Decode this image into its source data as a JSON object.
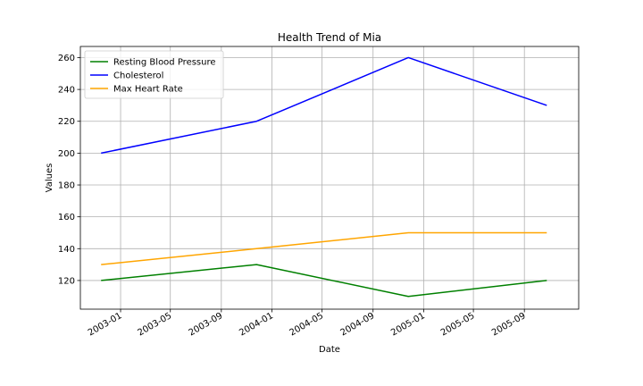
{
  "chart_data": {
    "type": "line",
    "title": "Health Trend of Mia",
    "xlabel": "Date",
    "ylabel": "Values",
    "x": [
      "2002-11-15",
      "2003-11-25",
      "2004-11-25",
      "2005-10-25"
    ],
    "x_ticks": [
      "2003-01-01",
      "2003-05-01",
      "2003-09-01",
      "2004-01-01",
      "2004-05-01",
      "2004-09-01",
      "2005-01-01",
      "2005-05-01",
      "2005-09-01"
    ],
    "x_tick_labels": [
      "2003-01",
      "2003-05",
      "2003-09",
      "2004-01",
      "2004-05",
      "2004-09",
      "2005-01",
      "2005-05",
      "2005-09"
    ],
    "xlim": [
      "2002-09-26",
      "2006-01-10"
    ],
    "ylim": [
      102,
      267
    ],
    "y_ticks": [
      120,
      140,
      160,
      180,
      200,
      220,
      240,
      260
    ],
    "grid": true,
    "legend_position": "upper-left",
    "series": [
      {
        "name": "Resting Blood Pressure",
        "color": "#008000",
        "values": [
          120,
          130,
          110,
          120
        ]
      },
      {
        "name": "Cholesterol",
        "color": "#0000ff",
        "values": [
          200,
          220,
          260,
          230
        ]
      },
      {
        "name": "Max Heart Rate",
        "color": "#ffa500",
        "values": [
          130,
          140,
          150,
          150
        ]
      }
    ]
  }
}
